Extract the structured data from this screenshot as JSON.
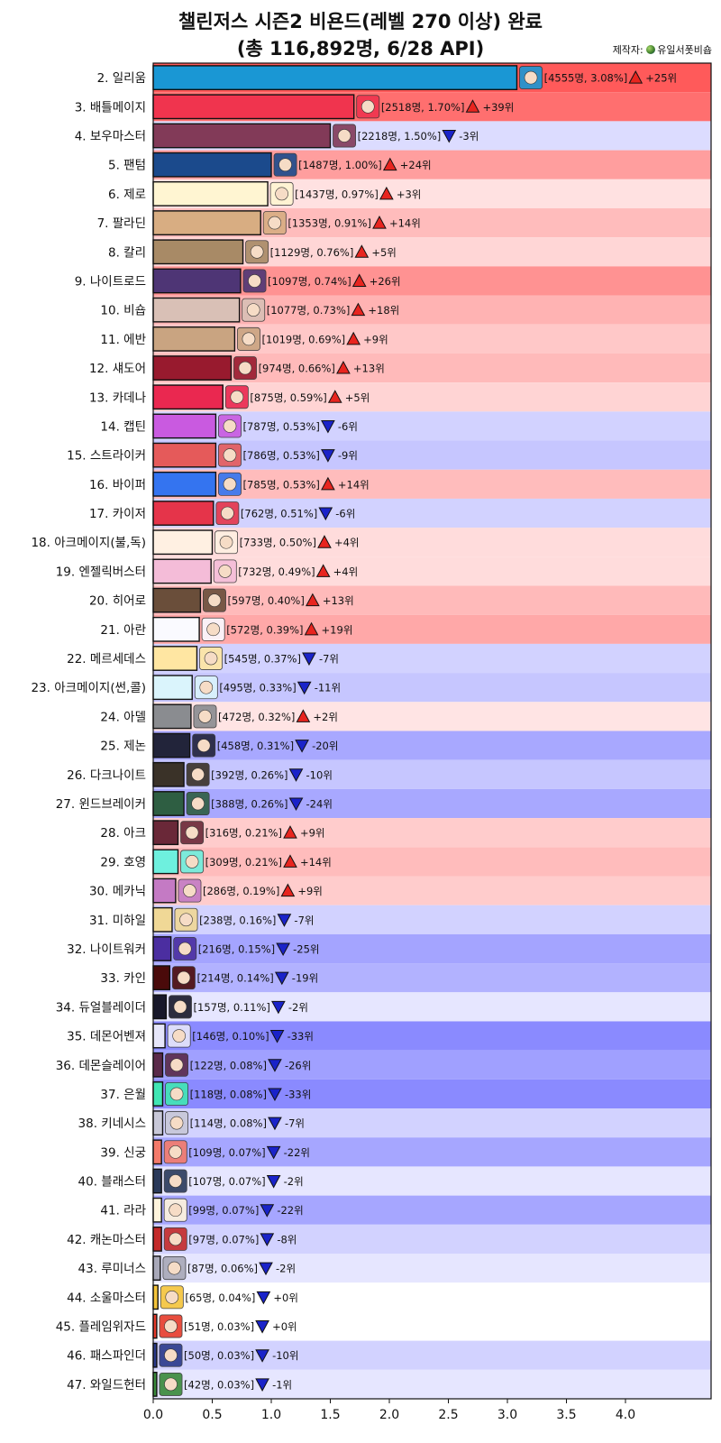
{
  "title_line1": "챌린저스 시즌2 비욘드(레벨 270 이상) 완료",
  "title_line2": "(총 116,892명, 6/28 API)",
  "maker_label": "제작자:",
  "maker_name": "유일서폿비숍",
  "colors": {
    "up": "#e8251f",
    "down": "#1a23c9",
    "bar_edge": "#111111"
  },
  "chart_data": {
    "type": "bar",
    "orientation": "horizontal",
    "title": "챌린저스 시즌2 비욘드(레벨 270 이상) 완료 (총 116,892명, 6/28 API)",
    "xlim": [
      0,
      4.7
    ],
    "x_ticks": [
      "0.0",
      "0.5",
      "1.0",
      "1.5",
      "2.0",
      "2.5",
      "3.0",
      "3.5",
      "4.0"
    ],
    "rows": [
      {
        "label": "2. 일리움",
        "value": 3.08,
        "count": "4555명",
        "pct": "3.08%",
        "dir": "up",
        "rank_change": "+25위",
        "color": "#1a97d4",
        "bg": "#ff5a5a"
      },
      {
        "label": "3. 배틀메이지",
        "value": 1.7,
        "count": "2518명",
        "pct": "1.70%",
        "dir": "up",
        "rank_change": "+39위",
        "color": "#f0344e",
        "bg": "#ff6f6f"
      },
      {
        "label": "4. 보우마스터",
        "value": 1.5,
        "count": "2218명",
        "pct": "1.50%",
        "dir": "down",
        "rank_change": "-3위",
        "color": "#823a58",
        "bg": "#dcdcff"
      },
      {
        "label": "5. 팬텀",
        "value": 1.0,
        "count": "1487명",
        "pct": "1.00%",
        "dir": "up",
        "rank_change": "+24위",
        "color": "#1b4a8c",
        "bg": "#ff9e9e"
      },
      {
        "label": "6. 제로",
        "value": 0.97,
        "count": "1437명",
        "pct": "0.97%",
        "dir": "up",
        "rank_change": "+3위",
        "color": "#fff5d2",
        "bg": "#ffe1e1"
      },
      {
        "label": "7. 팔라딘",
        "value": 0.91,
        "count": "1353명",
        "pct": "0.91%",
        "dir": "up",
        "rank_change": "+14위",
        "color": "#d8ad82",
        "bg": "#ffbcbc"
      },
      {
        "label": "8. 칼리",
        "value": 0.76,
        "count": "1129명",
        "pct": "0.76%",
        "dir": "up",
        "rank_change": "+5위",
        "color": "#a88a66",
        "bg": "#ffd6d6"
      },
      {
        "label": "9. 나이트로드",
        "value": 0.74,
        "count": "1097명",
        "pct": "0.74%",
        "dir": "up",
        "rank_change": "+26위",
        "color": "#4e3575",
        "bg": "#ff9292"
      },
      {
        "label": "10. 비숍",
        "value": 0.73,
        "count": "1077명",
        "pct": "0.73%",
        "dir": "up",
        "rank_change": "+18위",
        "color": "#d9c0b6",
        "bg": "#ffb3b3"
      },
      {
        "label": "11. 에반",
        "value": 0.69,
        "count": "1019명",
        "pct": "0.69%",
        "dir": "up",
        "rank_change": "+9위",
        "color": "#c9a481",
        "bg": "#ffc8c8"
      },
      {
        "label": "12. 섀도어",
        "value": 0.66,
        "count": "974명",
        "pct": "0.66%",
        "dir": "up",
        "rank_change": "+13위",
        "color": "#981a2e",
        "bg": "#ffbaba"
      },
      {
        "label": "13. 카데나",
        "value": 0.59,
        "count": "875명",
        "pct": "0.59%",
        "dir": "up",
        "rank_change": "+5위",
        "color": "#ea2850",
        "bg": "#ffd4d4"
      },
      {
        "label": "14. 캡틴",
        "value": 0.53,
        "count": "787명",
        "pct": "0.53%",
        "dir": "down",
        "rank_change": "-6위",
        "color": "#c95ae0",
        "bg": "#d2d2ff"
      },
      {
        "label": "15. 스트라이커",
        "value": 0.53,
        "count": "786명",
        "pct": "0.53%",
        "dir": "down",
        "rank_change": "-9위",
        "color": "#e55a5a",
        "bg": "#c6c6ff"
      },
      {
        "label": "16. 바이퍼",
        "value": 0.53,
        "count": "785명",
        "pct": "0.53%",
        "dir": "up",
        "rank_change": "+14위",
        "color": "#3474f0",
        "bg": "#ffbcbc"
      },
      {
        "label": "17. 카이저",
        "value": 0.51,
        "count": "762명",
        "pct": "0.51%",
        "dir": "down",
        "rank_change": "-6위",
        "color": "#e5344a",
        "bg": "#d2d2ff"
      },
      {
        "label": "18. 아크메이지(불,독)",
        "value": 0.5,
        "count": "733명",
        "pct": "0.50%",
        "dir": "up",
        "rank_change": "+4위",
        "color": "#fff0e2",
        "bg": "#ffdcdc"
      },
      {
        "label": "19. 엔젤릭버스터",
        "value": 0.49,
        "count": "732명",
        "pct": "0.49%",
        "dir": "up",
        "rank_change": "+4위",
        "color": "#f4bcd8",
        "bg": "#ffdcdc"
      },
      {
        "label": "20. 히어로",
        "value": 0.4,
        "count": "597명",
        "pct": "0.40%",
        "dir": "up",
        "rank_change": "+13위",
        "color": "#6a4e3a",
        "bg": "#ffbaba"
      },
      {
        "label": "21. 아란",
        "value": 0.39,
        "count": "572명",
        "pct": "0.39%",
        "dir": "up",
        "rank_change": "+19위",
        "color": "#fafaff",
        "bg": "#ffa8a8"
      },
      {
        "label": "22. 메르세데스",
        "value": 0.37,
        "count": "545명",
        "pct": "0.37%",
        "dir": "down",
        "rank_change": "-7위",
        "color": "#ffe6a2",
        "bg": "#d2d2ff"
      },
      {
        "label": "23. 아크메이지(썬,콜)",
        "value": 0.33,
        "count": "495명",
        "pct": "0.33%",
        "dir": "down",
        "rank_change": "-11위",
        "color": "#daf4fc",
        "bg": "#c6c6ff"
      },
      {
        "label": "24. 아델",
        "value": 0.32,
        "count": "472명",
        "pct": "0.32%",
        "dir": "up",
        "rank_change": "+2위",
        "color": "#8a8c90",
        "bg": "#ffe4e4"
      },
      {
        "label": "25. 제논",
        "value": 0.31,
        "count": "458명",
        "pct": "0.31%",
        "dir": "down",
        "rank_change": "-20위",
        "color": "#22243a",
        "bg": "#a8a8ff"
      },
      {
        "label": "26. 다크나이트",
        "value": 0.26,
        "count": "392명",
        "pct": "0.26%",
        "dir": "down",
        "rank_change": "-10위",
        "color": "#3a3228",
        "bg": "#c6c6ff"
      },
      {
        "label": "27. 윈드브레이커",
        "value": 0.26,
        "count": "388명",
        "pct": "0.26%",
        "dir": "down",
        "rank_change": "-24위",
        "color": "#2e5e42",
        "bg": "#a8a8ff"
      },
      {
        "label": "28. 아크",
        "value": 0.21,
        "count": "316명",
        "pct": "0.21%",
        "dir": "up",
        "rank_change": "+9위",
        "color": "#6a2838",
        "bg": "#ffcccc"
      },
      {
        "label": "29. 호영",
        "value": 0.21,
        "count": "309명",
        "pct": "0.21%",
        "dir": "up",
        "rank_change": "+14위",
        "color": "#6ef0de",
        "bg": "#ffbcbc"
      },
      {
        "label": "30. 메카닉",
        "value": 0.19,
        "count": "286명",
        "pct": "0.19%",
        "dir": "up",
        "rank_change": "+9위",
        "color": "#c47ac4",
        "bg": "#ffcccc"
      },
      {
        "label": "31. 미하일",
        "value": 0.16,
        "count": "238명",
        "pct": "0.16%",
        "dir": "down",
        "rank_change": "-7위",
        "color": "#f0d896",
        "bg": "#d2d2ff"
      },
      {
        "label": "32. 나이트워커",
        "value": 0.15,
        "count": "216명",
        "pct": "0.15%",
        "dir": "down",
        "rank_change": "-25위",
        "color": "#4b2ea0",
        "bg": "#a4a4ff"
      },
      {
        "label": "33. 카인",
        "value": 0.14,
        "count": "214명",
        "pct": "0.14%",
        "dir": "down",
        "rank_change": "-19위",
        "color": "#4a0a0a",
        "bg": "#b2b2ff"
      },
      {
        "label": "34. 듀얼블레이더",
        "value": 0.11,
        "count": "157명",
        "pct": "0.11%",
        "dir": "down",
        "rank_change": "-2위",
        "color": "#18182a",
        "bg": "#e6e6ff"
      },
      {
        "label": "35. 데몬어벤져",
        "value": 0.1,
        "count": "146명",
        "pct": "0.10%",
        "dir": "down",
        "rank_change": "-33위",
        "color": "#e6e6fa",
        "bg": "#8a8aff"
      },
      {
        "label": "36. 데몬슬레이어",
        "value": 0.08,
        "count": "122명",
        "pct": "0.08%",
        "dir": "down",
        "rank_change": "-26위",
        "color": "#5a2a4a",
        "bg": "#a0a0ff"
      },
      {
        "label": "37. 은월",
        "value": 0.08,
        "count": "118명",
        "pct": "0.08%",
        "dir": "down",
        "rank_change": "-33위",
        "color": "#40e6b4",
        "bg": "#8a8aff"
      },
      {
        "label": "38. 키네시스",
        "value": 0.08,
        "count": "114명",
        "pct": "0.08%",
        "dir": "down",
        "rank_change": "-7위",
        "color": "#c8c8d8",
        "bg": "#d2d2ff"
      },
      {
        "label": "39. 신궁",
        "value": 0.07,
        "count": "109명",
        "pct": "0.07%",
        "dir": "down",
        "rank_change": "-22위",
        "color": "#f47a6a",
        "bg": "#a6a6ff"
      },
      {
        "label": "40. 블래스터",
        "value": 0.07,
        "count": "107명",
        "pct": "0.07%",
        "dir": "down",
        "rank_change": "-2위",
        "color": "#2a3a5a",
        "bg": "#e6e6ff"
      },
      {
        "label": "41. 라라",
        "value": 0.07,
        "count": "99명",
        "pct": "0.07%",
        "dir": "down",
        "rank_change": "-22위",
        "color": "#fff4dc",
        "bg": "#a6a6ff"
      },
      {
        "label": "42. 캐논마스터",
        "value": 0.07,
        "count": "97명",
        "pct": "0.07%",
        "dir": "down",
        "rank_change": "-8위",
        "color": "#c42a2a",
        "bg": "#d2d2ff"
      },
      {
        "label": "43. 루미너스",
        "value": 0.06,
        "count": "87명",
        "pct": "0.06%",
        "dir": "down",
        "rank_change": "-2위",
        "color": "#a8a8b8",
        "bg": "#e6e6ff"
      },
      {
        "label": "44. 소울마스터",
        "value": 0.04,
        "count": "65명",
        "pct": "0.04%",
        "dir": "down",
        "rank_change": "+0위",
        "color": "#f4c43a",
        "bg": "#ffffff"
      },
      {
        "label": "45. 플레임위자드",
        "value": 0.03,
        "count": "51명",
        "pct": "0.03%",
        "dir": "down",
        "rank_change": "+0위",
        "color": "#e63a2a",
        "bg": "#ffffff"
      },
      {
        "label": "46. 패스파인더",
        "value": 0.03,
        "count": "50명",
        "pct": "0.03%",
        "dir": "down",
        "rank_change": "-10위",
        "color": "#2a3a8a",
        "bg": "#d2d2ff"
      },
      {
        "label": "47. 와일드헌터",
        "value": 0.03,
        "count": "42명",
        "pct": "0.03%",
        "dir": "down",
        "rank_change": "-1위",
        "color": "#3a8a3a",
        "bg": "#e6e6ff"
      }
    ]
  }
}
